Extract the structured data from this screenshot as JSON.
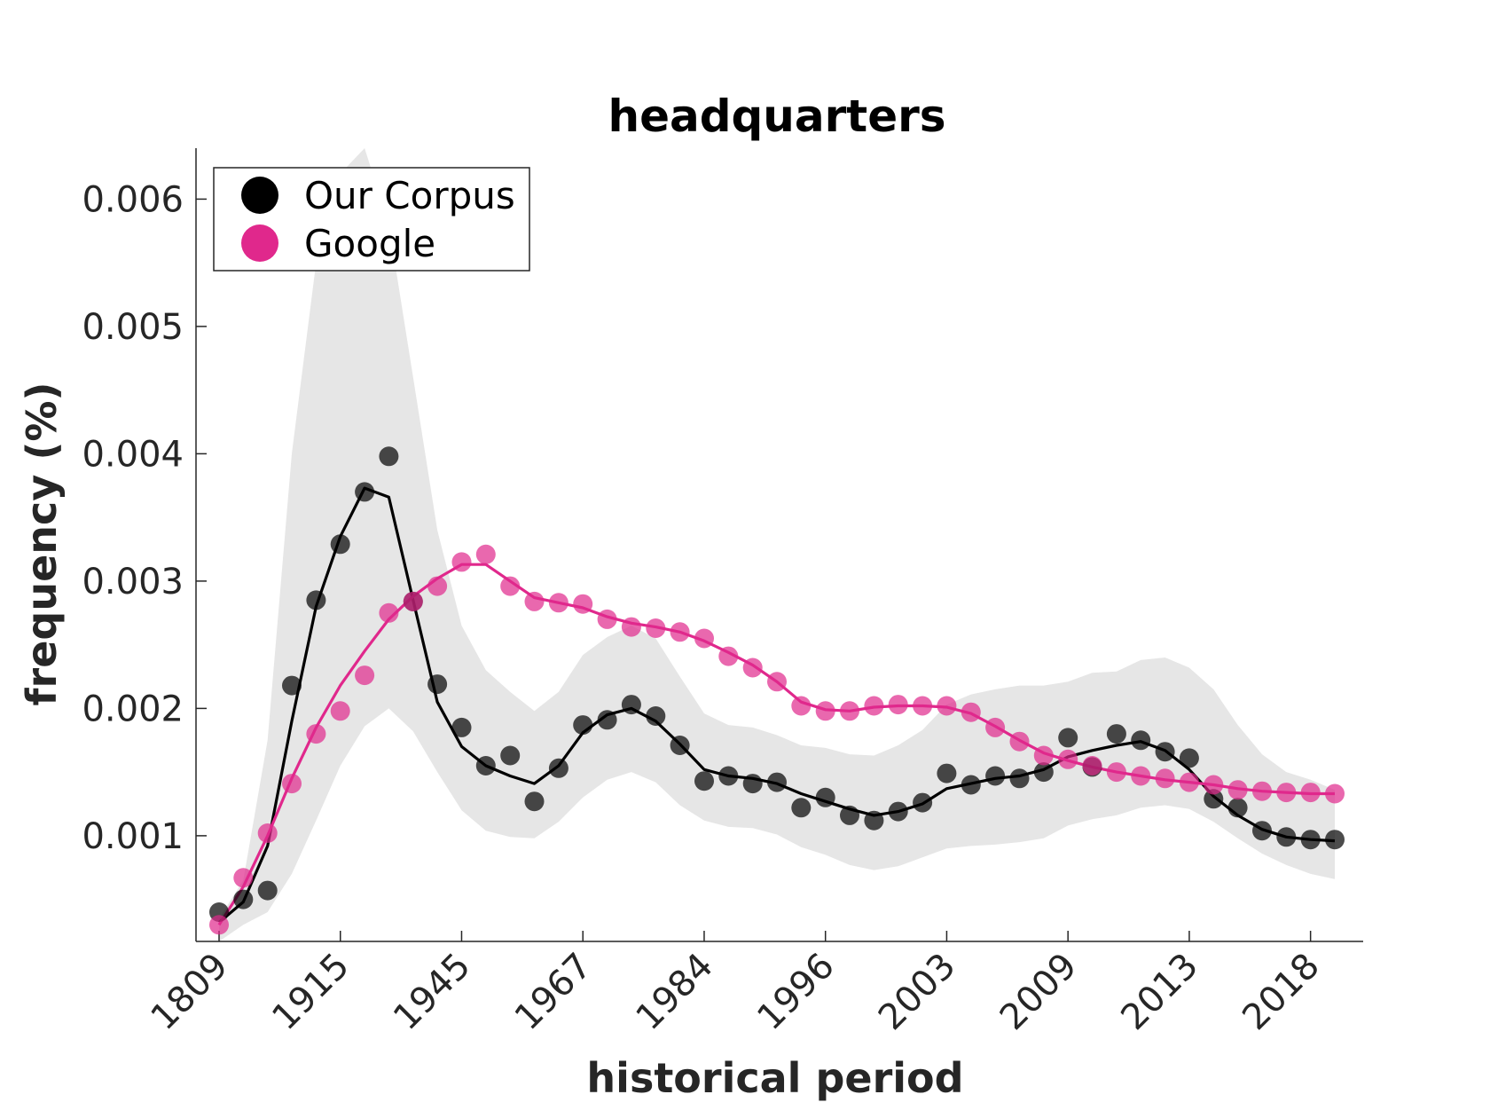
{
  "chart_data": {
    "type": "scatter",
    "title": "headquarters",
    "xlabel": "historical period",
    "ylabel": "frequency (%)",
    "x_tick_labels": [
      "1809",
      "1915",
      "1945",
      "1967",
      "1984",
      "1996",
      "2003",
      "2009",
      "2013",
      "2018"
    ],
    "y_ticks": [
      0.001,
      0.002,
      0.003,
      0.004,
      0.005,
      0.006
    ],
    "y_tick_labels": [
      "0.001",
      "0.002",
      "0.003",
      "0.004",
      "0.005",
      "0.006"
    ],
    "ylim": [
      0.00017,
      0.0064
    ],
    "point_count": 47,
    "legend": {
      "position": "top-left",
      "entries": [
        "Our Corpus",
        "Google"
      ]
    },
    "colors": {
      "corpus": "#000000",
      "google": "#e0288c",
      "band": "#e6e6e6"
    },
    "series": [
      {
        "name": "Our Corpus",
        "values": [
          0.0004,
          0.0005,
          0.00057,
          0.00218,
          0.00285,
          0.00329,
          0.0037,
          0.00398,
          0.00284,
          0.00219,
          0.00185,
          0.00155,
          0.00163,
          0.00127,
          0.00153,
          0.00187,
          0.00191,
          0.00203,
          0.00194,
          0.00171,
          0.00143,
          0.00147,
          0.00141,
          0.00142,
          0.00122,
          0.0013,
          0.00116,
          0.00112,
          0.00119,
          0.00126,
          0.00149,
          0.0014,
          0.00147,
          0.00145,
          0.0015,
          0.00177,
          0.00154,
          0.0018,
          0.00175,
          0.00166,
          0.00161,
          0.00129,
          0.00122,
          0.00104,
          0.00099,
          0.00097,
          0.00097
        ],
        "trend": [
          0.00032,
          0.00048,
          0.00092,
          0.0019,
          0.0028,
          0.00335,
          0.00373,
          0.00366,
          0.00285,
          0.00205,
          0.0017,
          0.00155,
          0.00147,
          0.00141,
          0.00155,
          0.00181,
          0.00195,
          0.002,
          0.0019,
          0.00172,
          0.00152,
          0.00147,
          0.00145,
          0.00141,
          0.00133,
          0.00127,
          0.00121,
          0.00116,
          0.00119,
          0.00125,
          0.00137,
          0.00141,
          0.00145,
          0.00147,
          0.00152,
          0.00162,
          0.00167,
          0.00171,
          0.00174,
          0.00167,
          0.00152,
          0.00131,
          0.00116,
          0.00105,
          0.00099,
          0.00097,
          0.00096
        ],
        "band_upper": [
          0.00035,
          0.00065,
          0.00175,
          0.004,
          0.0055,
          0.0062,
          0.0064,
          0.0058,
          0.0046,
          0.0034,
          0.00265,
          0.0023,
          0.00213,
          0.00198,
          0.00213,
          0.00242,
          0.00256,
          0.00265,
          0.00255,
          0.00225,
          0.00196,
          0.00187,
          0.00185,
          0.00179,
          0.00171,
          0.00169,
          0.00164,
          0.00163,
          0.00171,
          0.00183,
          0.00203,
          0.00211,
          0.00215,
          0.00218,
          0.00218,
          0.00221,
          0.00228,
          0.00229,
          0.00238,
          0.0024,
          0.00232,
          0.00215,
          0.00187,
          0.00164,
          0.0015,
          0.00144,
          0.00136
        ],
        "band_lower": [
          0.00017,
          0.0003,
          0.0004,
          0.0007,
          0.00112,
          0.00155,
          0.00186,
          0.002,
          0.00182,
          0.0015,
          0.0012,
          0.00104,
          0.00099,
          0.00098,
          0.00111,
          0.0013,
          0.00144,
          0.0015,
          0.00142,
          0.00124,
          0.00112,
          0.00107,
          0.00106,
          0.00101,
          0.00091,
          0.00085,
          0.00077,
          0.00073,
          0.00076,
          0.00083,
          0.0009,
          0.00092,
          0.00093,
          0.00095,
          0.00098,
          0.00108,
          0.00113,
          0.00116,
          0.00122,
          0.00124,
          0.00121,
          0.00111,
          0.00098,
          0.00086,
          0.00077,
          0.0007,
          0.00066
        ]
      },
      {
        "name": "Google",
        "values": [
          0.0003,
          0.00067,
          0.00102,
          0.00141,
          0.0018,
          0.00198,
          0.00226,
          0.00275,
          0.00284,
          0.00296,
          0.00315,
          0.00321,
          0.00296,
          0.00284,
          0.00283,
          0.00282,
          0.0027,
          0.00264,
          0.00263,
          0.0026,
          0.00255,
          0.00241,
          0.00232,
          0.00221,
          0.00202,
          0.00198,
          0.00198,
          0.00202,
          0.00203,
          0.00202,
          0.00202,
          0.00197,
          0.00185,
          0.00174,
          0.00163,
          0.0016,
          0.00155,
          0.0015,
          0.00147,
          0.00145,
          0.00142,
          0.0014,
          0.00136,
          0.00135,
          0.00134,
          0.00134,
          0.00133
        ],
        "trend": [
          0.0003,
          0.0006,
          0.001,
          0.00145,
          0.00185,
          0.00218,
          0.00245,
          0.0027,
          0.00288,
          0.00302,
          0.00313,
          0.00313,
          0.003,
          0.00287,
          0.00283,
          0.00279,
          0.00272,
          0.00267,
          0.00264,
          0.0026,
          0.00253,
          0.00244,
          0.00234,
          0.00221,
          0.00205,
          0.00199,
          0.00198,
          0.00201,
          0.00202,
          0.00202,
          0.00201,
          0.00196,
          0.00186,
          0.00175,
          0.00165,
          0.00159,
          0.00154,
          0.0015,
          0.00147,
          0.00144,
          0.00142,
          0.0014,
          0.00137,
          0.00135,
          0.00134,
          0.00133,
          0.00133
        ]
      }
    ]
  }
}
